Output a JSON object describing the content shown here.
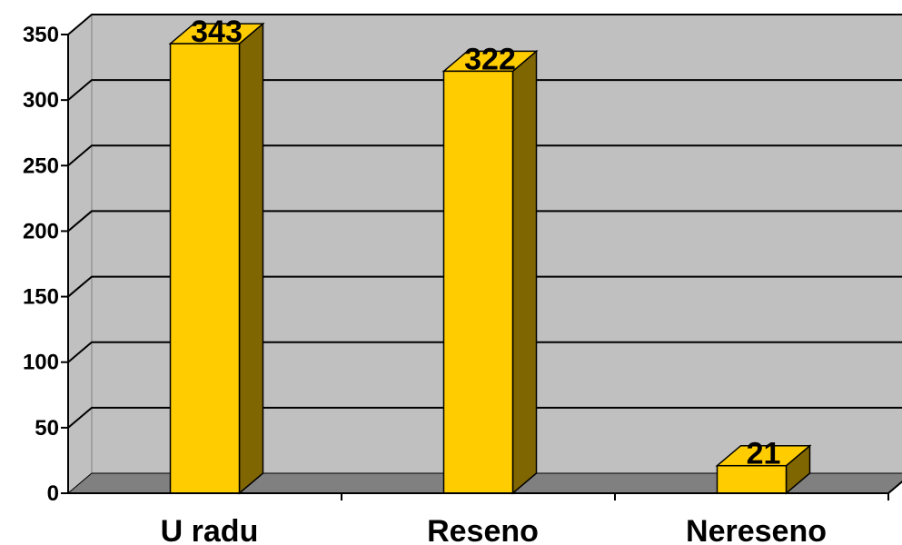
{
  "chart_data": {
    "type": "bar",
    "title": "",
    "xlabel": "",
    "ylabel": "",
    "categories": [
      "U radu",
      "Reseno",
      "Nereseno"
    ],
    "values": [
      343,
      322,
      21
    ],
    "data_labels": [
      "343",
      "322",
      "21"
    ],
    "ylim": [
      0,
      350
    ],
    "yticks": [
      0,
      50,
      100,
      150,
      200,
      250,
      300,
      350
    ],
    "grid": true,
    "legend": false,
    "style": "3d",
    "colors": {
      "bar_front": "#ffcc00",
      "bar_side": "#806600",
      "bar_top": "#ffcc00",
      "plot_back": "#c0c0c0",
      "floor": "#808080",
      "left_wall": "#c0c0c0",
      "gridline": "#000000"
    }
  }
}
